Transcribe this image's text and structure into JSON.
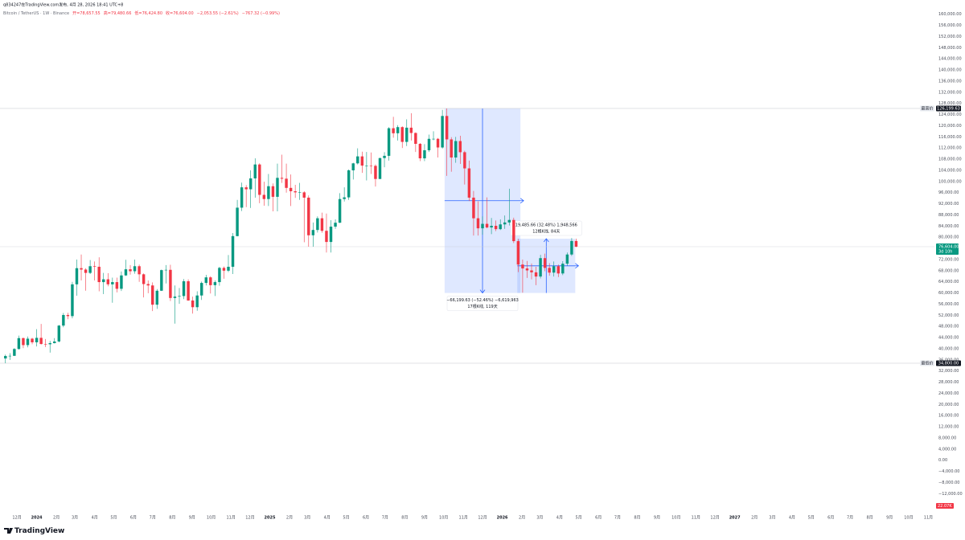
{
  "chart_data": {
    "type": "candlestick",
    "title": "q834247在TradingView.com发布, 4月 28, 2026 18:41 UTC+8",
    "subtitle": "Bitcoin / TetherUS · 1W · Binance",
    "ohlc_legend": [
      "开=78,657.55",
      "高=79,480.66",
      "低=76,424.80",
      "收=76,604.00",
      "−2,053.55 (−2.61%)",
      "−767.32 (−0.99%)"
    ],
    "up_color": "#089981",
    "down_color": "#f23645",
    "xlim": [
      -0.5,
      208
    ],
    "ylim": [
      -19400,
      162800
    ],
    "x": [
      0,
      1,
      2,
      3,
      4,
      5,
      6,
      7,
      8,
      9,
      10,
      11,
      12,
      13,
      14,
      15,
      16,
      17,
      18,
      19,
      20,
      21,
      22,
      23,
      24,
      25,
      26,
      27,
      28,
      29,
      30,
      31,
      32,
      33,
      34,
      35,
      36,
      37,
      38,
      39,
      40,
      41,
      42,
      43,
      44,
      45,
      46,
      47,
      48,
      49,
      50,
      51,
      52,
      53,
      54,
      55,
      56,
      57,
      58,
      59,
      60,
      61,
      62,
      63,
      64,
      65,
      66,
      67,
      68,
      69,
      70,
      71,
      72,
      73,
      74,
      75,
      76,
      77,
      78,
      79,
      80,
      81,
      82,
      83,
      84,
      85,
      86,
      87,
      88,
      89,
      90,
      91,
      92,
      93,
      94,
      95,
      96,
      97,
      98,
      99,
      100,
      101,
      102,
      103,
      104,
      105,
      106,
      107,
      108,
      109,
      110,
      111,
      112,
      113,
      114,
      115,
      116,
      117,
      118,
      119,
      120,
      121,
      122,
      123,
      124,
      125,
      126,
      127,
      128
    ],
    "ohlc": [
      [
        36500,
        37900,
        34800,
        37400
      ],
      [
        37400,
        38400,
        36000,
        37450
      ],
      [
        37450,
        40200,
        37400,
        39900
      ],
      [
        39900,
        44700,
        39700,
        43800
      ],
      [
        43800,
        44000,
        40200,
        41300
      ],
      [
        41300,
        44400,
        40500,
        43600
      ],
      [
        43600,
        43900,
        41600,
        42300
      ],
      [
        42300,
        47000,
        40800,
        43900
      ],
      [
        43900,
        48900,
        41500,
        41700
      ],
      [
        41700,
        43500,
        40600,
        41600
      ],
      [
        41600,
        42800,
        38600,
        42000
      ],
      [
        42000,
        43800,
        41900,
        42600
      ],
      [
        42600,
        48500,
        42300,
        48300
      ],
      [
        48300,
        52800,
        47700,
        52100
      ],
      [
        52100,
        52900,
        50600,
        51700
      ],
      [
        51700,
        64000,
        50900,
        63100
      ],
      [
        63100,
        72000,
        59000,
        68900
      ],
      [
        68900,
        73800,
        64500,
        68400
      ],
      [
        68400,
        68900,
        60800,
        67200
      ],
      [
        67200,
        71800,
        66800,
        69600
      ],
      [
        69600,
        71300,
        64500,
        69400
      ],
      [
        69400,
        72800,
        60600,
        63900
      ],
      [
        63900,
        67200,
        59600,
        64900
      ],
      [
        64900,
        67100,
        62400,
        63100
      ],
      [
        63100,
        65500,
        56500,
        63900
      ],
      [
        63900,
        65500,
        60200,
        61500
      ],
      [
        61500,
        67700,
        60700,
        66300
      ],
      [
        66300,
        71900,
        66100,
        68500
      ],
      [
        68500,
        70000,
        66600,
        67800
      ],
      [
        67800,
        72000,
        66900,
        69600
      ],
      [
        69600,
        70200,
        64000,
        66700
      ],
      [
        66700,
        67000,
        58400,
        63200
      ],
      [
        63200,
        64500,
        59900,
        62700
      ],
      [
        62700,
        63800,
        53500,
        55800
      ],
      [
        55800,
        61400,
        54300,
        60800
      ],
      [
        60800,
        68400,
        60700,
        68200
      ],
      [
        68200,
        70000,
        63400,
        68300
      ],
      [
        68300,
        70100,
        57100,
        58200
      ],
      [
        58200,
        62700,
        49000,
        58700
      ],
      [
        58700,
        61800,
        56100,
        58900
      ],
      [
        58900,
        65000,
        57800,
        64200
      ],
      [
        64200,
        64900,
        57200,
        57300
      ],
      [
        57300,
        58700,
        52600,
        54900
      ],
      [
        54900,
        60600,
        53600,
        59100
      ],
      [
        59100,
        64100,
        57500,
        63600
      ],
      [
        63600,
        66500,
        62700,
        65600
      ],
      [
        65600,
        66000,
        59800,
        62800
      ],
      [
        62800,
        64500,
        58900,
        63900
      ],
      [
        63900,
        69400,
        62600,
        69000
      ],
      [
        69000,
        69500,
        65100,
        68000
      ],
      [
        68000,
        73600,
        67500,
        69400
      ],
      [
        69400,
        81500,
        66800,
        80400
      ],
      [
        80400,
        93400,
        80300,
        90600
      ],
      [
        90600,
        99600,
        89400,
        97900
      ],
      [
        97900,
        98700,
        90800,
        97200
      ],
      [
        97200,
        104000,
        90500,
        101100
      ],
      [
        101100,
        108300,
        94200,
        106100
      ],
      [
        106100,
        106500,
        92200,
        95200
      ],
      [
        95200,
        99900,
        91300,
        93700
      ],
      [
        93700,
        102700,
        91200,
        98300
      ],
      [
        98300,
        99300,
        89300,
        94500
      ],
      [
        94500,
        106400,
        89300,
        101300
      ],
      [
        101300,
        109600,
        99500,
        101000
      ],
      [
        101000,
        106400,
        96000,
        97700
      ],
      [
        97700,
        102500,
        91200,
        96500
      ],
      [
        96500,
        98800,
        94100,
        96100
      ],
      [
        96100,
        99500,
        93400,
        96100
      ],
      [
        96100,
        96500,
        78200,
        94200
      ],
      [
        94200,
        95000,
        76600,
        80700
      ],
      [
        80700,
        85300,
        76600,
        82600
      ],
      [
        82600,
        87500,
        81700,
        86800
      ],
      [
        86800,
        88800,
        81600,
        82300
      ],
      [
        82300,
        88500,
        74500,
        78300
      ],
      [
        78300,
        86100,
        74500,
        83800
      ],
      [
        83800,
        86400,
        83000,
        85200
      ],
      [
        85200,
        95800,
        85100,
        93700
      ],
      [
        93700,
        97900,
        92800,
        94300
      ],
      [
        94300,
        104300,
        93400,
        104000
      ],
      [
        104000,
        106700,
        100700,
        106500
      ],
      [
        106500,
        111900,
        106100,
        109000
      ],
      [
        109000,
        110700,
        103100,
        105700
      ],
      [
        105700,
        110600,
        100400,
        105700
      ],
      [
        105700,
        110400,
        102700,
        105600
      ],
      [
        105600,
        106100,
        98200,
        100900
      ],
      [
        100900,
        108500,
        100900,
        108400
      ],
      [
        108400,
        110500,
        105100,
        109200
      ],
      [
        109200,
        119500,
        107500,
        119100
      ],
      [
        119100,
        123200,
        115700,
        117300
      ],
      [
        117300,
        120200,
        114700,
        119500
      ],
      [
        119500,
        119800,
        112000,
        114200
      ],
      [
        114200,
        122300,
        112700,
        119300
      ],
      [
        119300,
        124500,
        114700,
        117400
      ],
      [
        117400,
        117600,
        110600,
        113500
      ],
      [
        113500,
        113800,
        107300,
        108300
      ],
      [
        108300,
        113400,
        107300,
        111200
      ],
      [
        111200,
        116800,
        110600,
        115300
      ],
      [
        115300,
        118000,
        114800,
        115300
      ],
      [
        115300,
        115600,
        108600,
        112200
      ],
      [
        112200,
        125700,
        111800,
        123500
      ],
      [
        123500,
        126199.63,
        102000,
        115100
      ],
      [
        115100,
        115900,
        103500,
        108600
      ],
      [
        108600,
        116000,
        106700,
        114500
      ],
      [
        114500,
        116400,
        106300,
        110500
      ],
      [
        110500,
        111000,
        98900,
        104700
      ],
      [
        104700,
        107500,
        93000,
        94200
      ],
      [
        94200,
        96600,
        80600,
        86800
      ],
      [
        86800,
        92900,
        80600,
        83200
      ],
      [
        83200,
        87500,
        80900,
        84800
      ],
      [
        84800,
        94300,
        83200,
        83500
      ],
      [
        83500,
        86900,
        81100,
        84100
      ],
      [
        84100,
        86000,
        82200,
        82900
      ],
      [
        82900,
        86400,
        82600,
        84600
      ],
      [
        84600,
        87800,
        83000,
        85300
      ],
      [
        85300,
        97400,
        84200,
        86200
      ],
      [
        86200,
        87000,
        77900,
        78600
      ],
      [
        78600,
        79400,
        67500,
        70200
      ],
      [
        70200,
        72000,
        60100,
        68800
      ],
      [
        68800,
        71500,
        65400,
        68100
      ],
      [
        68100,
        70600,
        64900,
        67400
      ],
      [
        67400,
        69400,
        62800,
        65900
      ],
      [
        65900,
        73700,
        65200,
        72500
      ],
      [
        72500,
        74100,
        67800,
        69000
      ],
      [
        69000,
        70700,
        66200,
        67300
      ],
      [
        67300,
        71300,
        65900,
        69600
      ],
      [
        69600,
        70200,
        65700,
        67000
      ],
      [
        67000,
        71400,
        66400,
        70500
      ],
      [
        70500,
        74500,
        69800,
        73800
      ],
      [
        73800,
        79700,
        73300,
        78657.55
      ],
      [
        78657.55,
        79480.66,
        76424.8,
        76604
      ]
    ],
    "yticks": [
      {
        "value": 160000,
        "label": "160,000.00"
      },
      {
        "value": 156000,
        "label": "156,000.00"
      },
      {
        "value": 152000,
        "label": "152,000.00"
      },
      {
        "value": 148000,
        "label": "148,000.00"
      },
      {
        "value": 144000,
        "label": "144,000.00"
      },
      {
        "value": 140000,
        "label": "140,000.00"
      },
      {
        "value": 136000,
        "label": "136,000.00"
      },
      {
        "value": 132000,
        "label": "132,000.00"
      },
      {
        "value": 128000,
        "label": "128,000.00"
      },
      {
        "value": 124000,
        "label": "124,000.00"
      },
      {
        "value": 120000,
        "label": "120,000.00"
      },
      {
        "value": 116000,
        "label": "116,000.00"
      },
      {
        "value": 112000,
        "label": "112,000.00"
      },
      {
        "value": 108000,
        "label": "108,000.00"
      },
      {
        "value": 104000,
        "label": "104,000.00"
      },
      {
        "value": 100000,
        "label": "100,000.00"
      },
      {
        "value": 96000,
        "label": "96,000.00"
      },
      {
        "value": 92000,
        "label": "92,000.00"
      },
      {
        "value": 88000,
        "label": "88,000.00"
      },
      {
        "value": 84000,
        "label": "84,000.00"
      },
      {
        "value": 80000,
        "label": "80,000.00"
      },
      {
        "value": 72000,
        "label": "72,000.00"
      },
      {
        "value": 68000,
        "label": "68,000.00"
      },
      {
        "value": 64000,
        "label": "64,000.00"
      },
      {
        "value": 60000,
        "label": "60,000.00"
      },
      {
        "value": 56000,
        "label": "56,000.00"
      },
      {
        "value": 52000,
        "label": "52,000.00"
      },
      {
        "value": 48000,
        "label": "48,000.00"
      },
      {
        "value": 44000,
        "label": "44,000.00"
      },
      {
        "value": 40000,
        "label": "40,000.00"
      },
      {
        "value": 36000,
        "label": "36,000.00"
      },
      {
        "value": 32000,
        "label": "32,000.00"
      },
      {
        "value": 28000,
        "label": "28,000.00"
      },
      {
        "value": 24000,
        "label": "24,000.00"
      },
      {
        "value": 20000,
        "label": "20,000.00"
      },
      {
        "value": 16000,
        "label": "16,000.00"
      },
      {
        "value": 12000,
        "label": "12,000.00"
      },
      {
        "value": 8000,
        "label": "8,000.00"
      },
      {
        "value": 4000,
        "label": "4,000.00"
      },
      {
        "value": 0,
        "label": "0.00"
      },
      {
        "value": -4000,
        "label": "−4,000.00"
      },
      {
        "value": -8000,
        "label": "−8,000.00"
      },
      {
        "value": -12000,
        "label": "−12,000.00"
      }
    ],
    "xticks": [
      {
        "value": 2.57,
        "label": "12月"
      },
      {
        "value": 7,
        "label": "2024"
      },
      {
        "value": 11.43,
        "label": "2月"
      },
      {
        "value": 15.57,
        "label": "3月"
      },
      {
        "value": 20,
        "label": "4月"
      },
      {
        "value": 24.29,
        "label": "5月"
      },
      {
        "value": 28.71,
        "label": "6月"
      },
      {
        "value": 33,
        "label": "7月"
      },
      {
        "value": 37.43,
        "label": "8月"
      },
      {
        "value": 41.86,
        "label": "9月"
      },
      {
        "value": 46.14,
        "label": "10月"
      },
      {
        "value": 50.57,
        "label": "11月"
      },
      {
        "value": 54.86,
        "label": "12月"
      },
      {
        "value": 59.29,
        "label": "2025"
      },
      {
        "value": 63.71,
        "label": "2月"
      },
      {
        "value": 67.71,
        "label": "3月"
      },
      {
        "value": 72.14,
        "label": "4月"
      },
      {
        "value": 76.43,
        "label": "5月"
      },
      {
        "value": 80.86,
        "label": "6月"
      },
      {
        "value": 85.14,
        "label": "7月"
      },
      {
        "value": 89.57,
        "label": "8月"
      },
      {
        "value": 94,
        "label": "9月"
      },
      {
        "value": 98.29,
        "label": "10月"
      },
      {
        "value": 102.71,
        "label": "11月"
      },
      {
        "value": 107,
        "label": "12月"
      },
      {
        "value": 111.43,
        "label": "2026"
      },
      {
        "value": 115.86,
        "label": "2月"
      },
      {
        "value": 119.86,
        "label": "3月"
      },
      {
        "value": 124.29,
        "label": "4月"
      },
      {
        "value": 128.57,
        "label": "5月"
      },
      {
        "value": 133,
        "label": "6月"
      },
      {
        "value": 137.29,
        "label": "7月"
      },
      {
        "value": 141.71,
        "label": "8月"
      },
      {
        "value": 146.14,
        "label": "9月"
      },
      {
        "value": 150.43,
        "label": "10月"
      },
      {
        "value": 154.86,
        "label": "11月"
      },
      {
        "value": 159.14,
        "label": "12月"
      },
      {
        "value": 163.57,
        "label": "2027"
      },
      {
        "value": 168,
        "label": "2月"
      },
      {
        "value": 172,
        "label": "3月"
      },
      {
        "value": 176.43,
        "label": "4月"
      },
      {
        "value": 180.71,
        "label": "5月"
      },
      {
        "value": 185.14,
        "label": "6月"
      },
      {
        "value": 189.43,
        "label": "7月"
      },
      {
        "value": 193.86,
        "label": "8月"
      },
      {
        "value": 198.29,
        "label": "9月"
      },
      {
        "value": 202.57,
        "label": "10月"
      },
      {
        "value": 207,
        "label": "11月"
      }
    ],
    "markers": [
      {
        "name": "最高价",
        "value": 126199.63,
        "value_label": "126,199.63",
        "color": "#131722"
      },
      {
        "name": "最低价",
        "value": 34800,
        "value_label": "34,800.00",
        "color": "#131722"
      }
    ],
    "last_price": {
      "value": 76604,
      "value_label": "76,604.00",
      "countdown": "3d 10h",
      "color": "#089981"
    },
    "volume_label": "22.07K",
    "volume_color": "#f23645",
    "measures": [
      {
        "x": [
          98.5,
          115.5
        ],
        "y": [
          126199.63,
          60000
        ],
        "label": [
          "−66,199.63 (−52.46%) −6,619,963",
          "17根K线, 119天"
        ]
      },
      {
        "x": [
          114.8,
          127.8
        ],
        "y": [
          60000,
          79485.66
        ],
        "label": [
          "19,485.66 (32.48%) 1,948,566",
          "12根K线, 84天"
        ]
      }
    ],
    "measure_color": "#2962ff"
  },
  "brand": "TradingView"
}
